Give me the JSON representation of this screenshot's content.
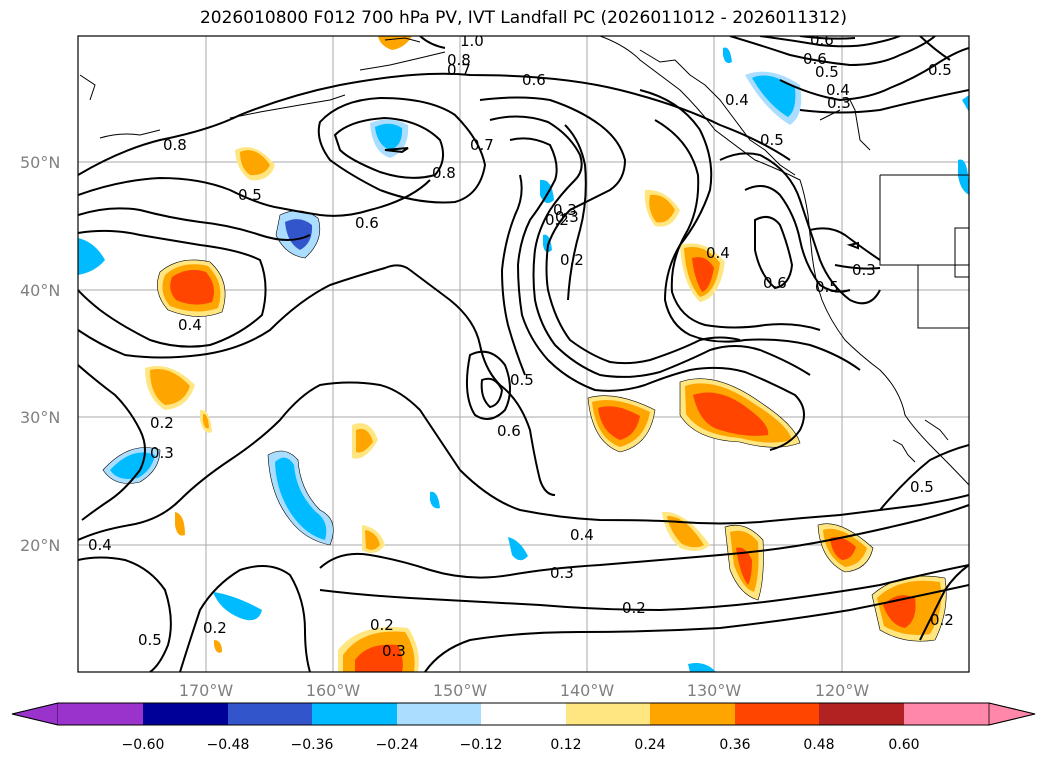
{
  "title": "2026010800 F012 700 hPa PV, IVT Landfall PC (2026011012 - 2026011312)",
  "latitude_labels": [
    "50°N",
    "40°N",
    "30°N",
    "20°N"
  ],
  "longitude_labels": [
    "170°W",
    "160°W",
    "150°W",
    "140°W",
    "130°W",
    "120°W"
  ],
  "colorbar": {
    "tick_labels": [
      "−0.60",
      "−0.48",
      "−0.36",
      "−0.24",
      "−0.12",
      "0.12",
      "0.24",
      "0.36",
      "0.48",
      "0.60"
    ],
    "colors": [
      "#9933cc",
      "#000099",
      "#3355cc",
      "#00bbff",
      "#aaddff",
      "#ffffff",
      "#ffe680",
      "#ffa500",
      "#ff4500",
      "#b22222",
      "#ff88aa"
    ]
  },
  "contour_labels": [
    "1.0",
    "0.8",
    "0.7",
    "0.6",
    "0.5",
    "0.4",
    "0.3",
    "0.8",
    "0.5",
    "0.6",
    "0.7",
    "0.8",
    "0.6",
    "0.4",
    "0.6",
    "0.5",
    "0.3",
    "0.2",
    "0.4",
    "0.6",
    "0.5",
    "0.3",
    "0.5",
    "0.6",
    "0.2",
    "0.3",
    "0.4",
    "0.3",
    "0.2",
    "0.5",
    "0.2",
    "0.4",
    "0.2",
    "0.3",
    "0.2",
    "0.5",
    "0.5",
    "0.4",
    "0.2",
    "0.3"
  ],
  "colors": {
    "background": "#ffffff",
    "gridline": "#aaaaaa",
    "contour": "#000000",
    "positive_fill": [
      "#ffe680",
      "#ffa500",
      "#ff4500"
    ],
    "negative_fill": [
      "#aaddff",
      "#00bbff",
      "#3355cc"
    ]
  }
}
